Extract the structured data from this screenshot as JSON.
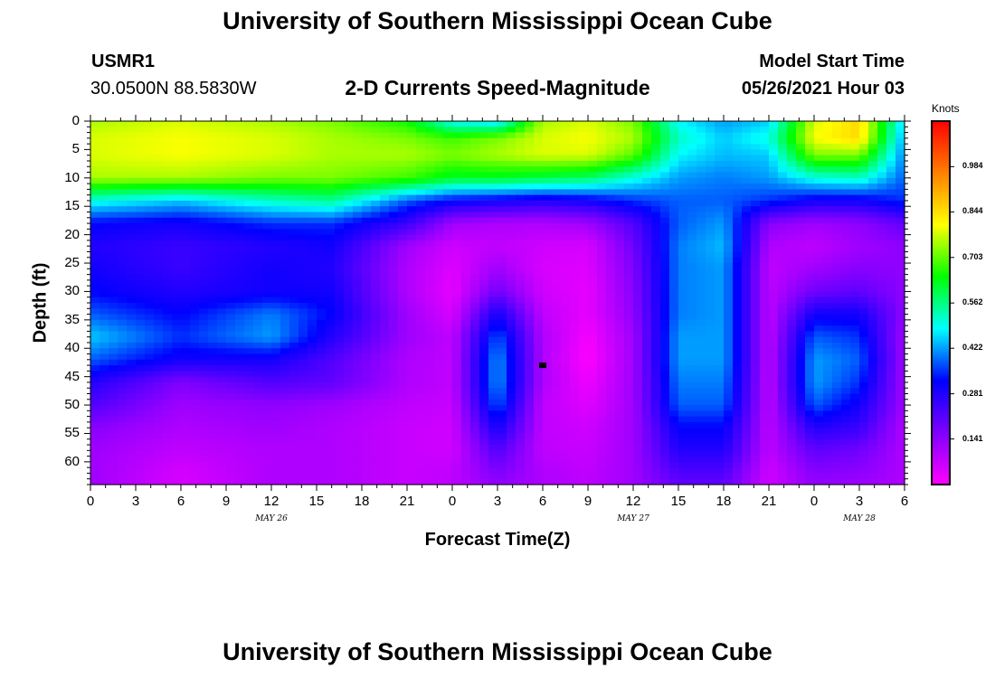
{
  "header": {
    "title_top": "University of Southern Mississippi Ocean Cube",
    "title_bottom": "University of Southern Mississippi Ocean Cube",
    "station_id": "USMR1",
    "location": "30.0500N  88.5830W",
    "model_start_label": "Model Start Time",
    "model_start_value": "05/26/2021 Hour 03"
  },
  "chart_data": {
    "type": "heatmap",
    "title": "2-D Currents Speed-Magnitude",
    "xlabel": "Forecast Time(Z)",
    "ylabel": "Depth (ft)",
    "x_ticks": [
      "0",
      "3",
      "6",
      "9",
      "12",
      "15",
      "18",
      "21",
      "0",
      "3",
      "6",
      "9",
      "12",
      "15",
      "18",
      "21",
      "0",
      "3",
      "6"
    ],
    "x_range_hours": [
      0,
      54
    ],
    "y_ticks": [
      "0",
      "5",
      "10",
      "15",
      "20",
      "25",
      "30",
      "35",
      "40",
      "45",
      "50",
      "55",
      "60"
    ],
    "y_range": [
      0,
      64
    ],
    "date_labels": [
      {
        "text": "MAY 26",
        "hour": 12
      },
      {
        "text": "MAY 27",
        "hour": 36
      },
      {
        "text": "MAY 28",
        "hour": 51
      }
    ],
    "colorbar": {
      "label": "Knots",
      "ticks": [
        "0.984",
        "0.844",
        "0.703",
        "0.562",
        "0.422",
        "0.281",
        "0.141"
      ],
      "tick_values": [
        0.984,
        0.844,
        0.703,
        0.562,
        0.422,
        0.281,
        0.141
      ],
      "range": [
        0,
        1.125
      ],
      "colors": [
        "#ff00ff",
        "#7f00ff",
        "#0000ff",
        "#00ffff",
        "#00ff00",
        "#ffff00",
        "#ff8000",
        "#ff0000"
      ]
    },
    "time_hours": [
      0,
      6,
      12,
      16,
      21,
      24,
      27,
      30,
      33,
      36,
      39,
      42,
      45,
      48,
      51,
      54
    ],
    "depths_ft": [
      0,
      3,
      6,
      10,
      14,
      18,
      22,
      26,
      30,
      34,
      38,
      42,
      46,
      50,
      54,
      58,
      62,
      64
    ],
    "speed_knots": [
      [
        0.75,
        0.78,
        0.75,
        0.72,
        0.65,
        0.48,
        0.45,
        0.75,
        0.78,
        0.72,
        0.48,
        0.42,
        0.45,
        0.78,
        0.85,
        0.45
      ],
      [
        0.78,
        0.8,
        0.78,
        0.75,
        0.72,
        0.68,
        0.72,
        0.78,
        0.8,
        0.75,
        0.52,
        0.45,
        0.5,
        0.8,
        0.85,
        0.42
      ],
      [
        0.78,
        0.8,
        0.78,
        0.75,
        0.75,
        0.72,
        0.75,
        0.78,
        0.78,
        0.7,
        0.48,
        0.44,
        0.45,
        0.72,
        0.72,
        0.4
      ],
      [
        0.75,
        0.75,
        0.72,
        0.72,
        0.68,
        0.62,
        0.62,
        0.6,
        0.58,
        0.5,
        0.42,
        0.4,
        0.42,
        0.5,
        0.52,
        0.38
      ],
      [
        0.5,
        0.45,
        0.52,
        0.55,
        0.38,
        0.32,
        0.3,
        0.28,
        0.3,
        0.35,
        0.38,
        0.38,
        0.35,
        0.3,
        0.3,
        0.35
      ],
      [
        0.32,
        0.3,
        0.35,
        0.35,
        0.25,
        0.12,
        0.1,
        0.1,
        0.12,
        0.22,
        0.38,
        0.42,
        0.15,
        0.12,
        0.14,
        0.2
      ],
      [
        0.28,
        0.25,
        0.28,
        0.3,
        0.12,
        0.06,
        0.08,
        0.06,
        0.05,
        0.18,
        0.4,
        0.44,
        0.1,
        0.08,
        0.12,
        0.14
      ],
      [
        0.3,
        0.25,
        0.3,
        0.28,
        0.1,
        0.04,
        0.12,
        0.05,
        0.04,
        0.16,
        0.4,
        0.42,
        0.08,
        0.12,
        0.15,
        0.14
      ],
      [
        0.32,
        0.28,
        0.3,
        0.3,
        0.1,
        0.03,
        0.18,
        0.06,
        0.03,
        0.15,
        0.4,
        0.42,
        0.08,
        0.18,
        0.2,
        0.14
      ],
      [
        0.38,
        0.32,
        0.4,
        0.32,
        0.12,
        0.05,
        0.3,
        0.08,
        0.03,
        0.14,
        0.4,
        0.42,
        0.08,
        0.3,
        0.3,
        0.14
      ],
      [
        0.45,
        0.35,
        0.42,
        0.28,
        0.12,
        0.08,
        0.38,
        0.1,
        0.01,
        0.12,
        0.42,
        0.42,
        0.08,
        0.38,
        0.35,
        0.12
      ],
      [
        0.38,
        0.3,
        0.3,
        0.22,
        0.1,
        0.08,
        0.42,
        0.1,
        0.0,
        0.12,
        0.42,
        0.42,
        0.08,
        0.42,
        0.38,
        0.12
      ],
      [
        0.28,
        0.16,
        0.22,
        0.2,
        0.1,
        0.08,
        0.42,
        0.1,
        0.02,
        0.12,
        0.4,
        0.4,
        0.08,
        0.42,
        0.35,
        0.12
      ],
      [
        0.22,
        0.12,
        0.14,
        0.12,
        0.08,
        0.07,
        0.38,
        0.08,
        0.04,
        0.12,
        0.38,
        0.38,
        0.08,
        0.38,
        0.3,
        0.12
      ],
      [
        0.15,
        0.1,
        0.12,
        0.1,
        0.07,
        0.06,
        0.3,
        0.08,
        0.06,
        0.12,
        0.32,
        0.32,
        0.08,
        0.28,
        0.25,
        0.1
      ],
      [
        0.12,
        0.08,
        0.1,
        0.1,
        0.07,
        0.06,
        0.22,
        0.08,
        0.07,
        0.12,
        0.28,
        0.28,
        0.08,
        0.2,
        0.18,
        0.1
      ],
      [
        0.12,
        0.05,
        0.1,
        0.1,
        0.07,
        0.08,
        0.16,
        0.1,
        0.08,
        0.12,
        0.22,
        0.22,
        0.06,
        0.15,
        0.14,
        0.1
      ],
      [
        0.12,
        0.05,
        0.1,
        0.1,
        0.07,
        0.08,
        0.14,
        0.1,
        0.08,
        0.12,
        0.2,
        0.2,
        0.06,
        0.14,
        0.12,
        0.1
      ]
    ],
    "marker": {
      "hour": 30,
      "depth_ft": 43
    }
  }
}
